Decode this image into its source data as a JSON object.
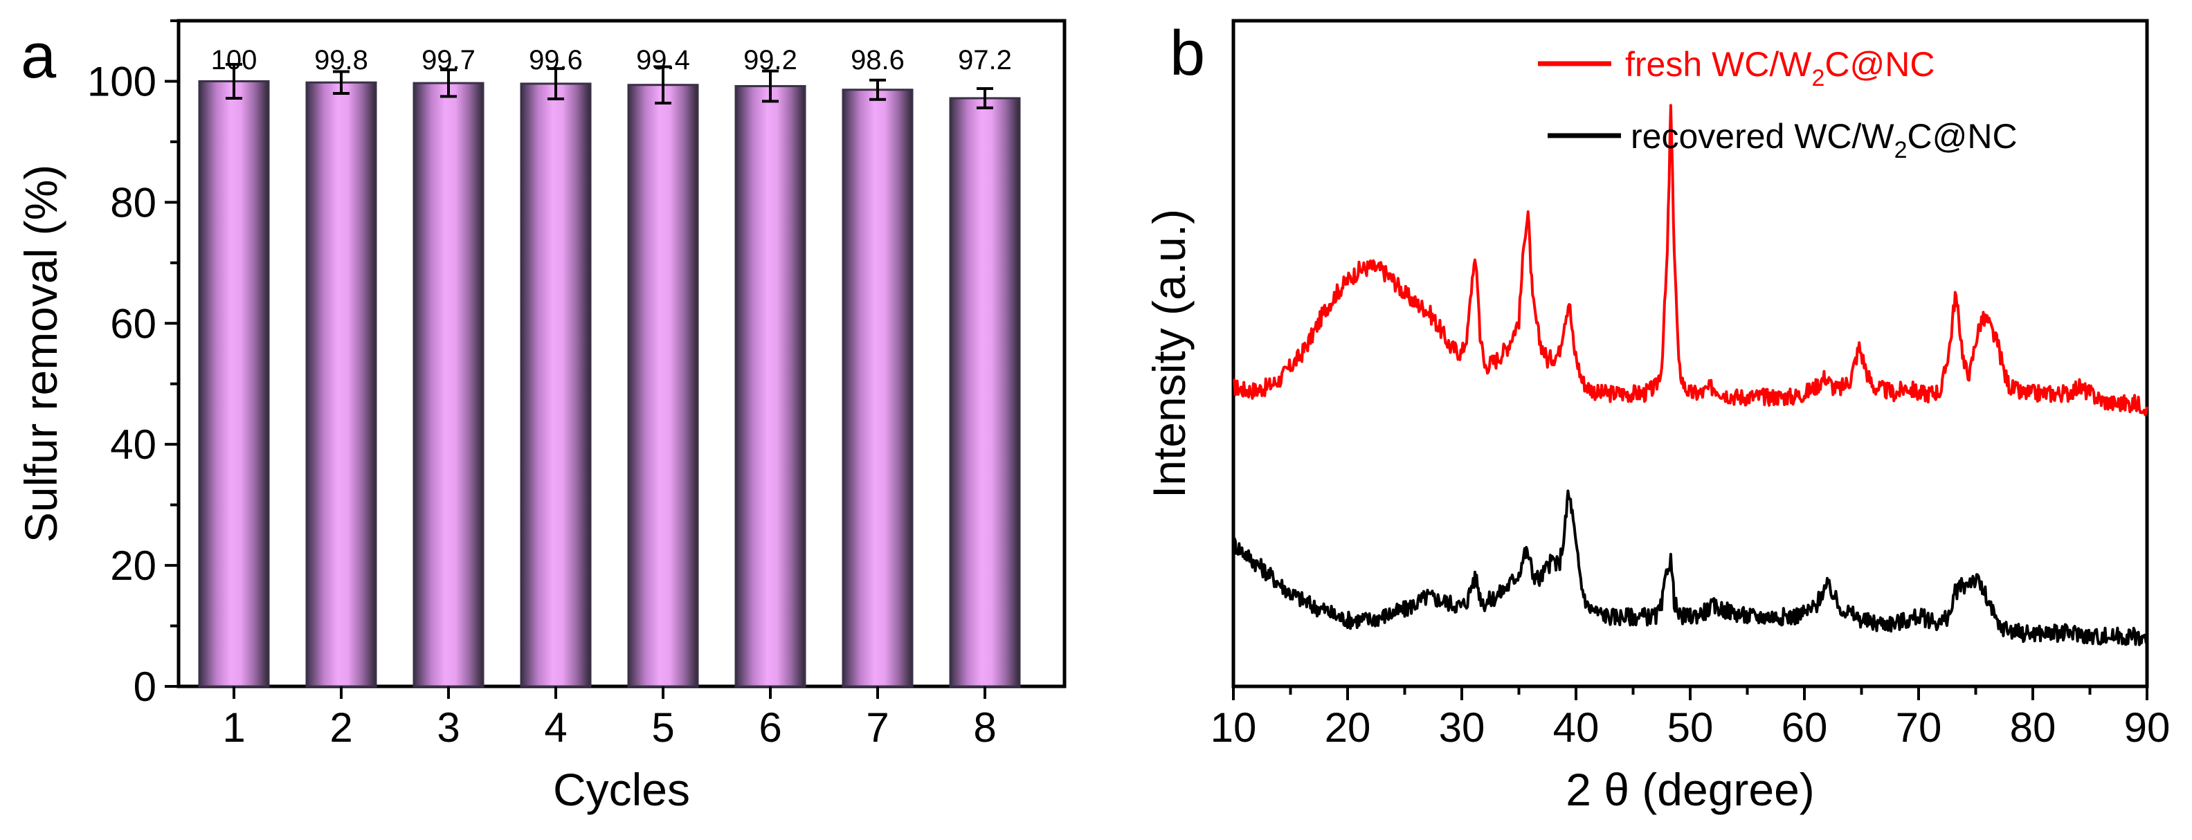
{
  "chart_data": [
    {
      "panel": "a",
      "type": "bar",
      "title": "",
      "xlabel": "Cycles",
      "ylabel": "Sulfur removal (%)",
      "categories": [
        "1",
        "2",
        "3",
        "4",
        "5",
        "6",
        "7",
        "8"
      ],
      "values": [
        100,
        99.8,
        99.7,
        99.6,
        99.4,
        99.2,
        98.6,
        97.2
      ],
      "value_labels": [
        "100",
        "99.8",
        "99.7",
        "99.6",
        "99.4",
        "99.2",
        "98.6",
        "97.2"
      ],
      "errors": [
        2.8,
        1.8,
        2.2,
        2.5,
        3.0,
        2.5,
        1.6,
        1.6
      ],
      "ylim": [
        0,
        110
      ],
      "yticks": [
        0,
        20,
        40,
        60,
        80,
        100
      ],
      "ytick_labels": [
        "0",
        "20",
        "40",
        "60",
        "80",
        "100"
      ],
      "grid": false,
      "bar_color": "#e8a0f0",
      "bar_edge_color": "#3a3048"
    },
    {
      "panel": "b",
      "type": "line",
      "title": "",
      "xlabel": "2 θ (degree)",
      "ylabel": "Intensity (a.u.)",
      "xlim": [
        10,
        90
      ],
      "xticks": [
        10,
        20,
        30,
        40,
        50,
        60,
        70,
        80,
        90
      ],
      "xtick_labels": [
        "10",
        "20",
        "30",
        "40",
        "50",
        "60",
        "70",
        "80",
        "90"
      ],
      "ylim": [
        0,
        100
      ],
      "yticks_shown": false,
      "grid": false,
      "legend_position": "top-right",
      "series": [
        {
          "name": "fresh WC/W2C@NC",
          "legend_prefix": "fresh WC/W",
          "legend_sub": "2",
          "legend_suffix": "C@NC",
          "color": "#ff0000",
          "x": [
            10,
            11,
            12,
            13,
            14,
            15,
            16,
            17,
            18,
            19,
            20,
            21,
            22,
            23,
            24,
            25,
            26,
            27,
            28,
            29,
            30,
            30.5,
            31,
            31.3,
            31.6,
            32,
            33,
            34,
            35,
            35.5,
            35.8,
            36.2,
            36.8,
            37.5,
            38.5,
            39,
            39.4,
            39.8,
            40.5,
            41,
            42,
            43,
            44,
            45,
            46,
            47,
            47.5,
            48,
            48.3,
            48.6,
            49,
            49.5,
            50,
            51,
            52,
            53,
            54,
            55,
            56,
            57,
            58,
            59,
            60,
            61,
            61.8,
            62.5,
            63,
            64,
            64.8,
            65.5,
            66,
            67,
            68,
            69,
            70,
            71,
            72,
            72.8,
            73.2,
            73.6,
            74,
            74.5,
            75,
            75.5,
            76,
            76.5,
            77,
            77.5,
            78,
            79,
            80,
            81,
            82,
            83,
            84,
            85,
            86,
            87,
            88,
            89,
            90
          ],
          "y": [
            45,
            44.5,
            44.5,
            45,
            46,
            48,
            50,
            53,
            56.5,
            59,
            61,
            62.5,
            63,
            62.5,
            61,
            59,
            57.5,
            56.5,
            54,
            51,
            50,
            53,
            63,
            63,
            53,
            48,
            49,
            51,
            55,
            68,
            71,
            58,
            52,
            49,
            50,
            55,
            58,
            51,
            46,
            45,
            44,
            44,
            44,
            44,
            44,
            45,
            48,
            65,
            87,
            66,
            48,
            45,
            44,
            44,
            45,
            44,
            43.5,
            43.5,
            43.5,
            43.5,
            43.5,
            43.5,
            44,
            45,
            46.5,
            45,
            44.5,
            46,
            51,
            47,
            45,
            44.5,
            44,
            45,
            44,
            44,
            44.5,
            52,
            59,
            54,
            48,
            47,
            52,
            55,
            55,
            53,
            51,
            47,
            45,
            44,
            44,
            44,
            44,
            44,
            45,
            44,
            43,
            42.5,
            42.5,
            42.5,
            42
          ]
        },
        {
          "name": "recovered WC/W2C@NC",
          "legend_prefix": "recovered WC/W",
          "legend_sub": "2",
          "legend_suffix": "C@NC",
          "color": "#000000",
          "x": [
            10,
            11,
            12,
            13,
            14,
            15,
            16,
            17,
            18,
            19,
            20,
            21,
            22,
            23,
            24,
            25,
            26,
            27,
            28,
            29,
            30,
            30.5,
            31,
            31.3,
            31.6,
            32,
            33,
            34,
            35,
            35.5,
            35.8,
            36.2,
            36.8,
            37.5,
            38,
            38.5,
            39,
            39.3,
            39.6,
            40,
            40.5,
            41,
            42,
            43,
            44,
            45,
            46,
            47,
            47.5,
            48,
            48.3,
            48.6,
            49,
            49.5,
            50,
            51,
            52,
            53,
            54,
            55,
            56,
            57,
            58,
            59,
            60,
            61,
            61.5,
            62,
            62.5,
            63,
            64,
            65,
            66,
            67,
            68,
            69,
            70,
            71,
            72,
            72.8,
            73.2,
            73.6,
            74,
            74.5,
            75,
            75.5,
            76,
            76.5,
            77,
            78,
            79,
            80,
            81,
            82,
            83,
            84,
            85,
            86,
            87,
            88,
            89,
            90
          ],
          "y": [
            21.5,
            20,
            18.5,
            17,
            15.5,
            14,
            13,
            12,
            11.5,
            10.5,
            10,
            10,
            10,
            10.5,
            11,
            11.5,
            12.5,
            13.5,
            13,
            12.5,
            12,
            13,
            16,
            16,
            13.5,
            12.5,
            13.5,
            15,
            17,
            20,
            20,
            17,
            16,
            18,
            19,
            18,
            23,
            29,
            27,
            21,
            15,
            12,
            11,
            10.5,
            10.5,
            10.5,
            10.5,
            10.5,
            12,
            18,
            19,
            13,
            10.5,
            10.5,
            10.5,
            11,
            12,
            11.5,
            11,
            10.5,
            10.5,
            10.5,
            10.5,
            10.5,
            11,
            12,
            14,
            15,
            14,
            12,
            11,
            10,
            9.5,
            9.5,
            9.5,
            10,
            10.5,
            10,
            9.5,
            11,
            14,
            15,
            15,
            16,
            16,
            15,
            13,
            11,
            9,
            8.5,
            8,
            8,
            8,
            8,
            8,
            8,
            7.5,
            7.5,
            7.5,
            7.5,
            7.5,
            7
          ]
        }
      ]
    }
  ]
}
